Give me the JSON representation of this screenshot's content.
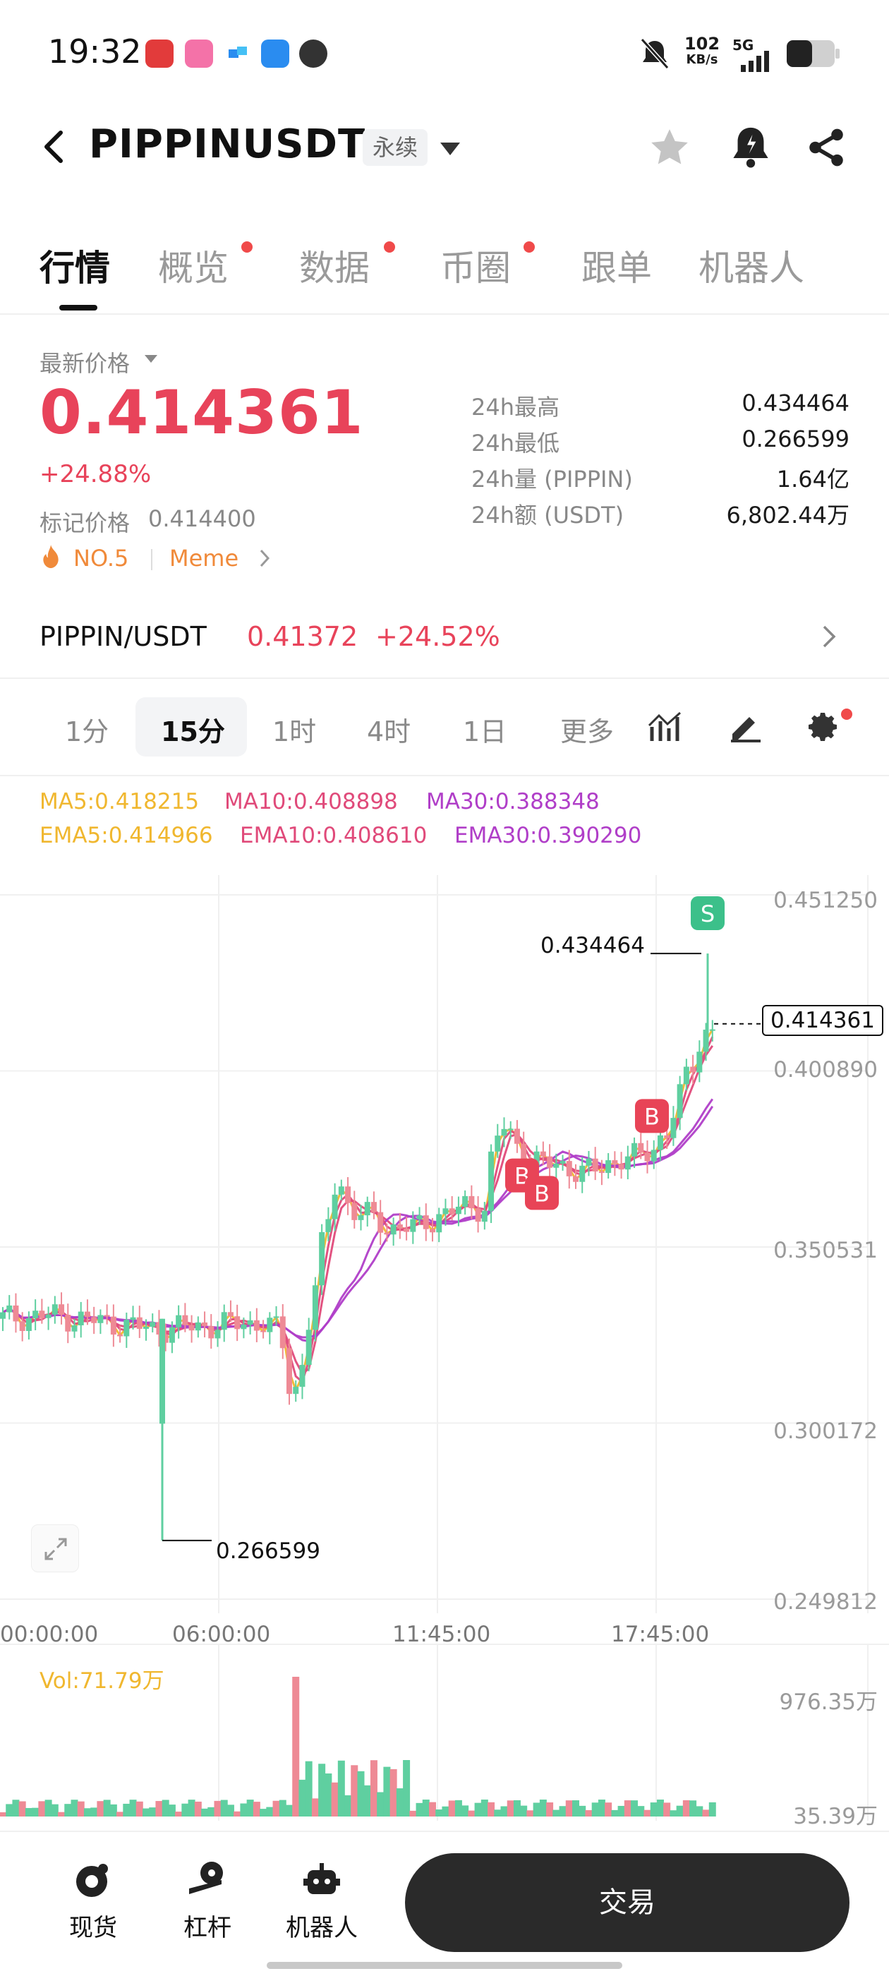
{
  "status_bar": {
    "time": "19:32",
    "net_speed_value": "102",
    "net_speed_unit": "KB/s",
    "network": "5G"
  },
  "header": {
    "title": "PIPPINUSDT",
    "tag": "永续"
  },
  "tabs": [
    {
      "label": "行情",
      "active": true,
      "dot": false
    },
    {
      "label": "概览",
      "active": false,
      "dot": true
    },
    {
      "label": "数据",
      "active": false,
      "dot": true
    },
    {
      "label": "币圈",
      "active": false,
      "dot": true
    },
    {
      "label": "跟单",
      "active": false,
      "dot": false
    },
    {
      "label": "机器人",
      "active": false,
      "dot": false
    }
  ],
  "price": {
    "label": "最新价格",
    "value": "0.414361",
    "change": "+24.88%",
    "mark_label": "标记价格",
    "mark_value": "0.414400",
    "rank": "NO.5",
    "category": "Meme"
  },
  "stats": [
    {
      "label": "24h最高",
      "value": "0.434464"
    },
    {
      "label": "24h最低",
      "value": "0.266599"
    },
    {
      "label": "24h量 (PIPPIN)",
      "value": "1.64亿"
    },
    {
      "label": "24h额 (USDT)",
      "value": "6,802.44万"
    }
  ],
  "pair": {
    "name": "PIPPIN/USDT",
    "price": "0.41372",
    "change": "+24.52%"
  },
  "timeframes": [
    {
      "label": "1分",
      "active": false
    },
    {
      "label": "15分",
      "active": true
    },
    {
      "label": "1时",
      "active": false
    },
    {
      "label": "4时",
      "active": false
    },
    {
      "label": "1日",
      "active": false
    },
    {
      "label": "更多",
      "active": false
    }
  ],
  "indicators": {
    "ma5": "MA5:0.418215",
    "ma10": "MA10:0.408898",
    "ma30": "MA30:0.388348",
    "ema5": "EMA5:0.414966",
    "ema10": "EMA10:0.408610",
    "ema30": "EMA30:0.390290"
  },
  "chart_data": {
    "type": "candlestick",
    "y_ticks": [
      "0.451250",
      "0.400890",
      "0.350531",
      "0.300172",
      "0.249812"
    ],
    "x_ticks": [
      "00:00:00",
      "06:00:00",
      "11:45:00",
      "17:45:00"
    ],
    "high_label": "0.434464",
    "low_label": "0.266599",
    "current_price_label": "0.414361",
    "volume_label": "Vol:71.79万",
    "volume_ticks": [
      "976.35万",
      "35.39万"
    ],
    "markers": [
      {
        "label": "S",
        "type": "sell"
      },
      {
        "label": "B",
        "type": "buy"
      },
      {
        "label": "B",
        "type": "buy"
      },
      {
        "label": "B",
        "type": "buy"
      }
    ],
    "colors": {
      "up": "#5fcfa0",
      "down": "#ee8a95",
      "ma5": "#f0b72f",
      "ma10": "#e04a7a",
      "ma30": "#b03ec8"
    }
  },
  "bottom_nav": {
    "spot": "现货",
    "leverage": "杠杆",
    "bot": "机器人",
    "trade": "交易"
  }
}
